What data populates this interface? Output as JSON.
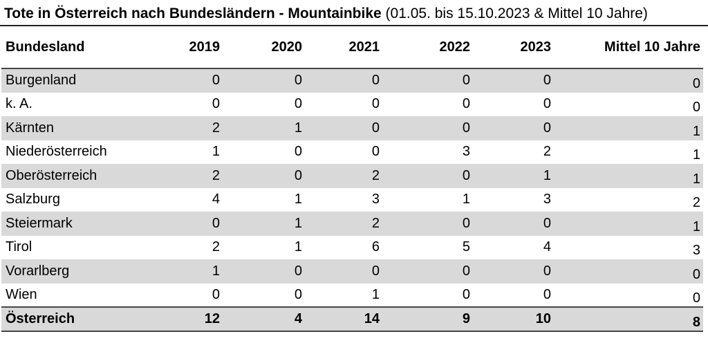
{
  "title": {
    "main": "Tote in Österreich nach Bundesländern - Mountainbike",
    "subtitle": "(01.05. bis 15.10.2023 & Mittel 10 Jahre)"
  },
  "chart_data": {
    "type": "table",
    "title": "Tote in Österreich nach Bundesländern - Mountainbike (01.05. bis 15.10.2023 & Mittel 10 Jahre)",
    "columns": [
      "Bundesland",
      "2019",
      "2020",
      "2021",
      "2022",
      "2023",
      "Mittel 10 Jahre"
    ],
    "rows": [
      {
        "bundesland": "Burgenland",
        "values": [
          0,
          0,
          0,
          0,
          0,
          0
        ]
      },
      {
        "bundesland": "k. A.",
        "values": [
          0,
          0,
          0,
          0,
          0,
          0
        ]
      },
      {
        "bundesland": "Kärnten",
        "values": [
          2,
          1,
          0,
          0,
          0,
          1
        ]
      },
      {
        "bundesland": "Niederösterreich",
        "values": [
          1,
          0,
          0,
          3,
          2,
          1
        ]
      },
      {
        "bundesland": "Oberösterreich",
        "values": [
          2,
          0,
          2,
          0,
          1,
          1
        ]
      },
      {
        "bundesland": "Salzburg",
        "values": [
          4,
          1,
          3,
          1,
          3,
          2
        ]
      },
      {
        "bundesland": "Steiermark",
        "values": [
          0,
          1,
          2,
          0,
          0,
          1
        ]
      },
      {
        "bundesland": "Tirol",
        "values": [
          2,
          1,
          6,
          5,
          4,
          3
        ]
      },
      {
        "bundesland": "Vorarlberg",
        "values": [
          1,
          0,
          0,
          0,
          0,
          0
        ]
      },
      {
        "bundesland": "Wien",
        "values": [
          0,
          0,
          1,
          0,
          0,
          0
        ]
      }
    ],
    "total": {
      "bundesland": "Österreich",
      "values": [
        12,
        4,
        14,
        9,
        10,
        8
      ]
    },
    "layout": {
      "striped": true,
      "numeric_alignment": "right"
    }
  },
  "colors": {
    "row_stripe": "#d9d9d9",
    "title_rule": "#1f1f1f",
    "table_rule": "#454545",
    "text": "#000000",
    "background": "#ffffff"
  }
}
